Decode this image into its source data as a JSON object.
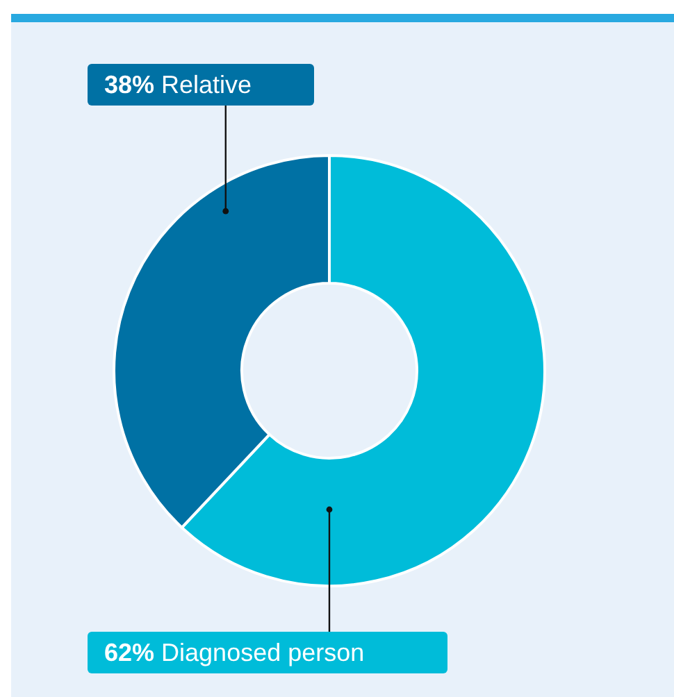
{
  "chart_data": {
    "type": "donut",
    "categories": [
      "Diagnosed person",
      "Relative"
    ],
    "values": [
      62,
      38
    ],
    "colors": [
      "#00bcd9",
      "#0071a4"
    ],
    "value_labels": [
      "62%",
      "38%"
    ]
  }
}
